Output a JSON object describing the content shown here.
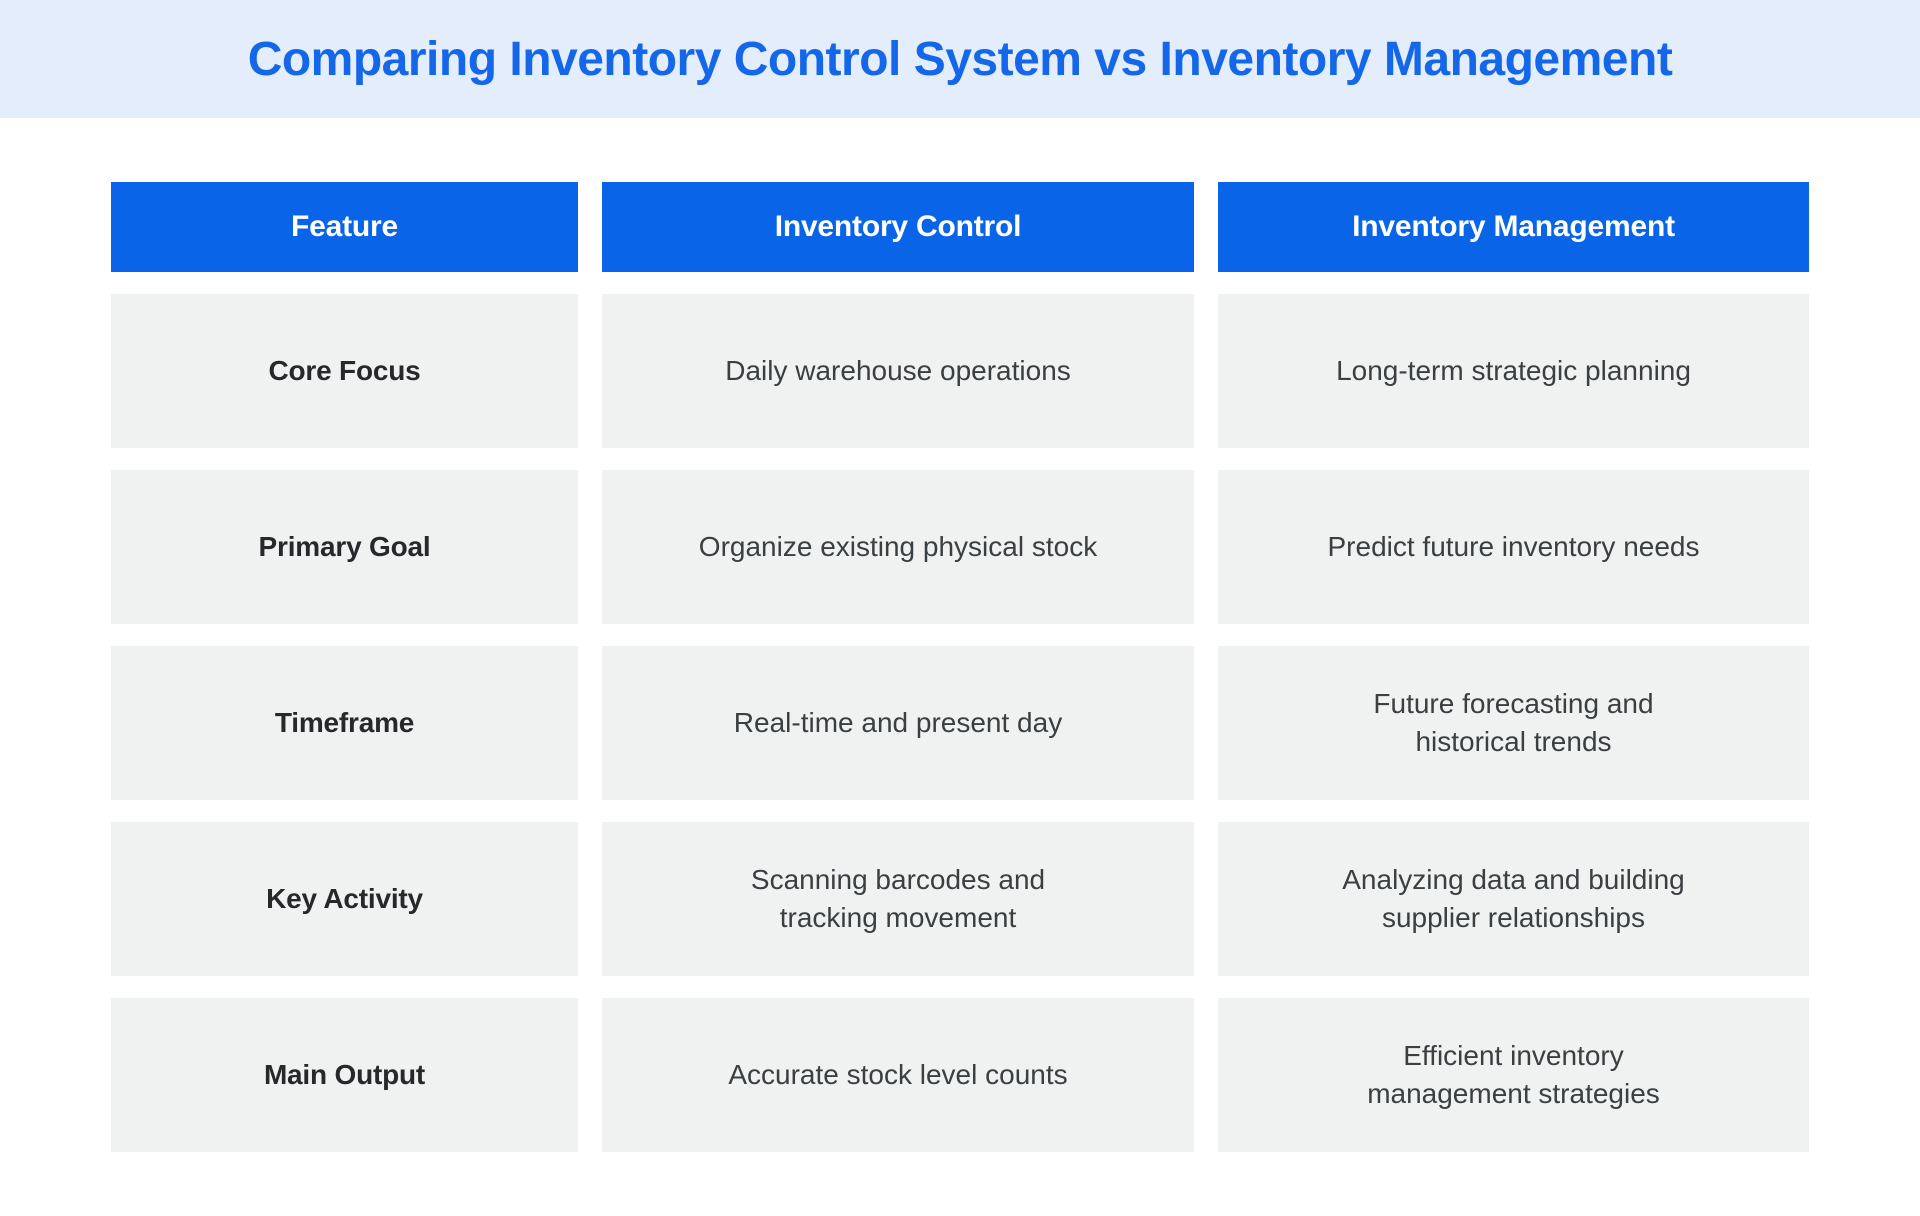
{
  "title_band": {
    "title": "Comparing Inventory Control System vs Inventory Management"
  },
  "chart_data": {
    "type": "table",
    "title": "Comparing Inventory Control System vs Inventory Management",
    "columns": [
      "Feature",
      "Inventory Control",
      "Inventory Management"
    ],
    "rows": [
      [
        "Core Focus",
        "Daily warehouse operations",
        "Long-term strategic planning"
      ],
      [
        "Primary Goal",
        "Organize existing physical stock",
        "Predict future inventory needs"
      ],
      [
        "Timeframe",
        "Real-time and present day",
        "Future forecasting and\nhistorical trends"
      ],
      [
        "Key Activity",
        "Scanning barcodes and\ntracking movement",
        "Analyzing data and building\nsupplier relationships"
      ],
      [
        "Main Output",
        "Accurate stock level counts",
        "Efficient inventory\nmanagement strategies"
      ]
    ],
    "layout": {
      "header_position": "top-row",
      "grid": "off",
      "legend": "none"
    }
  },
  "colors": {
    "title_band_bg": "#E4EDFC",
    "title_text": "#1467E8",
    "header_bg": "#0A64E8",
    "header_text": "#FFFFFF",
    "cell_bg": "#F0F1F1",
    "cell_text": "#3A3F42",
    "feature_text": "#26292C",
    "page_bg": "#FFFFFF"
  }
}
